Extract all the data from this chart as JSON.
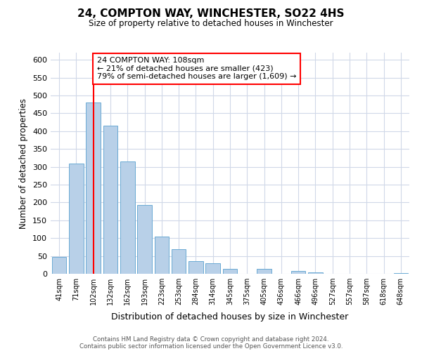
{
  "title": "24, COMPTON WAY, WINCHESTER, SO22 4HS",
  "subtitle": "Size of property relative to detached houses in Winchester",
  "xlabel": "Distribution of detached houses by size in Winchester",
  "ylabel": "Number of detached properties",
  "bin_labels": [
    "41sqm",
    "71sqm",
    "102sqm",
    "132sqm",
    "162sqm",
    "193sqm",
    "223sqm",
    "253sqm",
    "284sqm",
    "314sqm",
    "345sqm",
    "375sqm",
    "405sqm",
    "436sqm",
    "466sqm",
    "496sqm",
    "527sqm",
    "557sqm",
    "587sqm",
    "618sqm",
    "648sqm"
  ],
  "bar_values": [
    47,
    310,
    480,
    415,
    315,
    192,
    105,
    69,
    35,
    30,
    14,
    0,
    14,
    0,
    8,
    3,
    0,
    0,
    0,
    0,
    2
  ],
  "bar_color": "#b8d0e8",
  "bar_edge_color": "#6aaad4",
  "grid_color": "#d0d8e8",
  "vline_x_index": 2,
  "vline_color": "red",
  "annotation_line1": "24 COMPTON WAY: 108sqm",
  "annotation_line2": "← 21% of detached houses are smaller (423)",
  "annotation_line3": "79% of semi-detached houses are larger (1,609) →",
  "annotation_box_edge_color": "red",
  "ylim": [
    0,
    620
  ],
  "yticks": [
    0,
    50,
    100,
    150,
    200,
    250,
    300,
    350,
    400,
    450,
    500,
    550,
    600
  ],
  "footnote1": "Contains HM Land Registry data © Crown copyright and database right 2024.",
  "footnote2": "Contains public sector information licensed under the Open Government Licence v3.0."
}
